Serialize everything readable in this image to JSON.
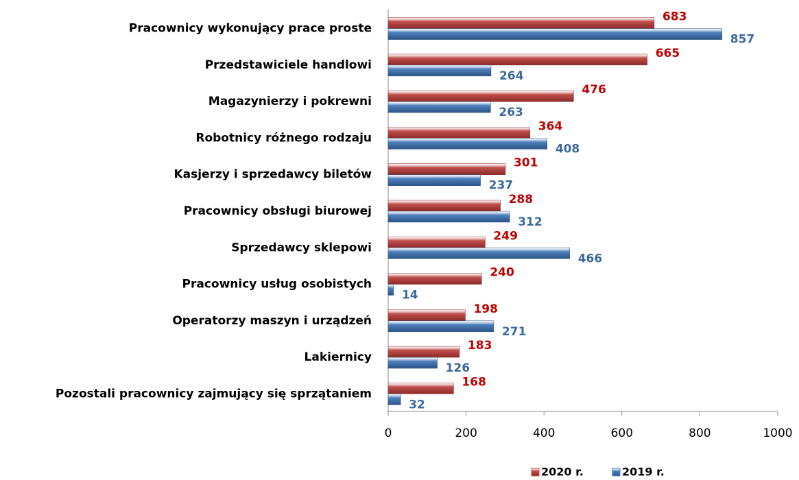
{
  "chart_data": {
    "type": "bar",
    "orientation": "horizontal",
    "categories": [
      "Pracownicy wykonujący prace proste",
      "Przedstawiciele handlowi",
      "Magazynierzy i pokrewni",
      "Robotnicy różnego rodzaju",
      "Kasjerzy i sprzedawcy biletów",
      "Pracownicy obsługi biurowej",
      "Sprzedawcy sklepowi",
      "Pracownicy usług osobistych",
      "Operatorzy maszyn i urządzeń",
      "Lakiernicy",
      "Pozostali pracownicy zajmujący się sprzątaniem"
    ],
    "series": [
      {
        "name": "2020 r.",
        "color": "#c0504d",
        "values": [
          683,
          665,
          476,
          364,
          301,
          288,
          249,
          240,
          198,
          183,
          168
        ]
      },
      {
        "name": "2019 r.",
        "color": "#4f81bd",
        "values": [
          857,
          264,
          263,
          408,
          237,
          312,
          466,
          14,
          271,
          126,
          32
        ]
      }
    ],
    "xlim": [
      0,
      1000
    ],
    "xticks": [
      0,
      200,
      400,
      600,
      800,
      1000
    ],
    "legend": "bottom"
  }
}
